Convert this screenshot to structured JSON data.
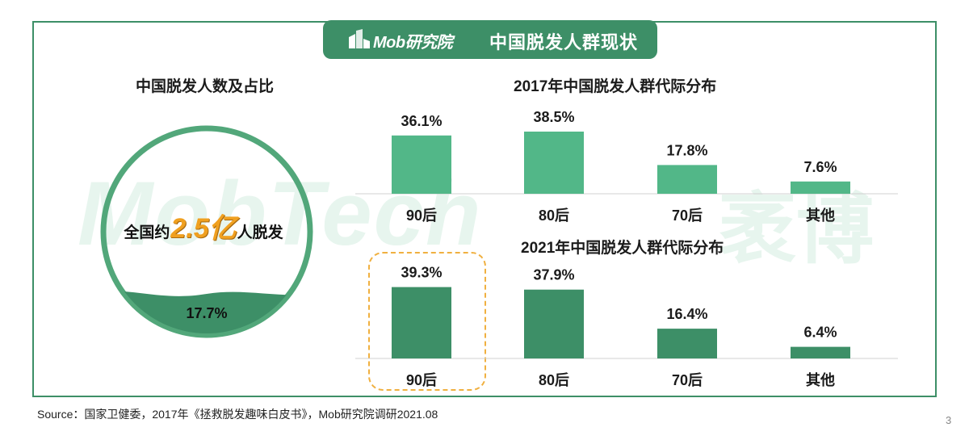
{
  "header": {
    "logo_text": "Mob研究院",
    "title": "中国脱发人群现状",
    "logo_icon": "building-icon"
  },
  "watermark": {
    "text": "MobTech",
    "text_cn": "袤博"
  },
  "left_panel": {
    "title": "中国脱发人数及占比",
    "stat_prefix": "全国约",
    "stat_number": "2.5亿",
    "stat_suffix": "人脱发",
    "share_label": "17.7%",
    "share_value": 17.7
  },
  "colors": {
    "primary_green": "#3d8f67",
    "bar_2017": "#52b788",
    "bar_2021": "#3d8f67",
    "highlight": "#f0b040",
    "stat_number": "#f0a020"
  },
  "chart_data": [
    {
      "type": "bar",
      "title": "2017年中国脱发人群代际分布",
      "categories": [
        "90后",
        "80后",
        "70后",
        "其他"
      ],
      "values": [
        36.1,
        38.5,
        17.8,
        7.6
      ],
      "value_labels": [
        "36.1%",
        "38.5%",
        "17.8%",
        "7.6%"
      ],
      "ylim": [
        0,
        40
      ],
      "grid": false
    },
    {
      "type": "bar",
      "title": "2021年中国脱发人群代际分布",
      "categories": [
        "90后",
        "80后",
        "70后",
        "其他"
      ],
      "values": [
        39.3,
        37.9,
        16.4,
        6.4
      ],
      "value_labels": [
        "39.3%",
        "37.9%",
        "16.4%",
        "6.4%"
      ],
      "ylim": [
        0,
        40
      ],
      "grid": false,
      "highlighted_category": "90后"
    }
  ],
  "footer": {
    "source": "Source：国家卫健委，2017年《拯救脱发趣味白皮书》，Mob研究院调研2021.08",
    "page_number": "3"
  }
}
